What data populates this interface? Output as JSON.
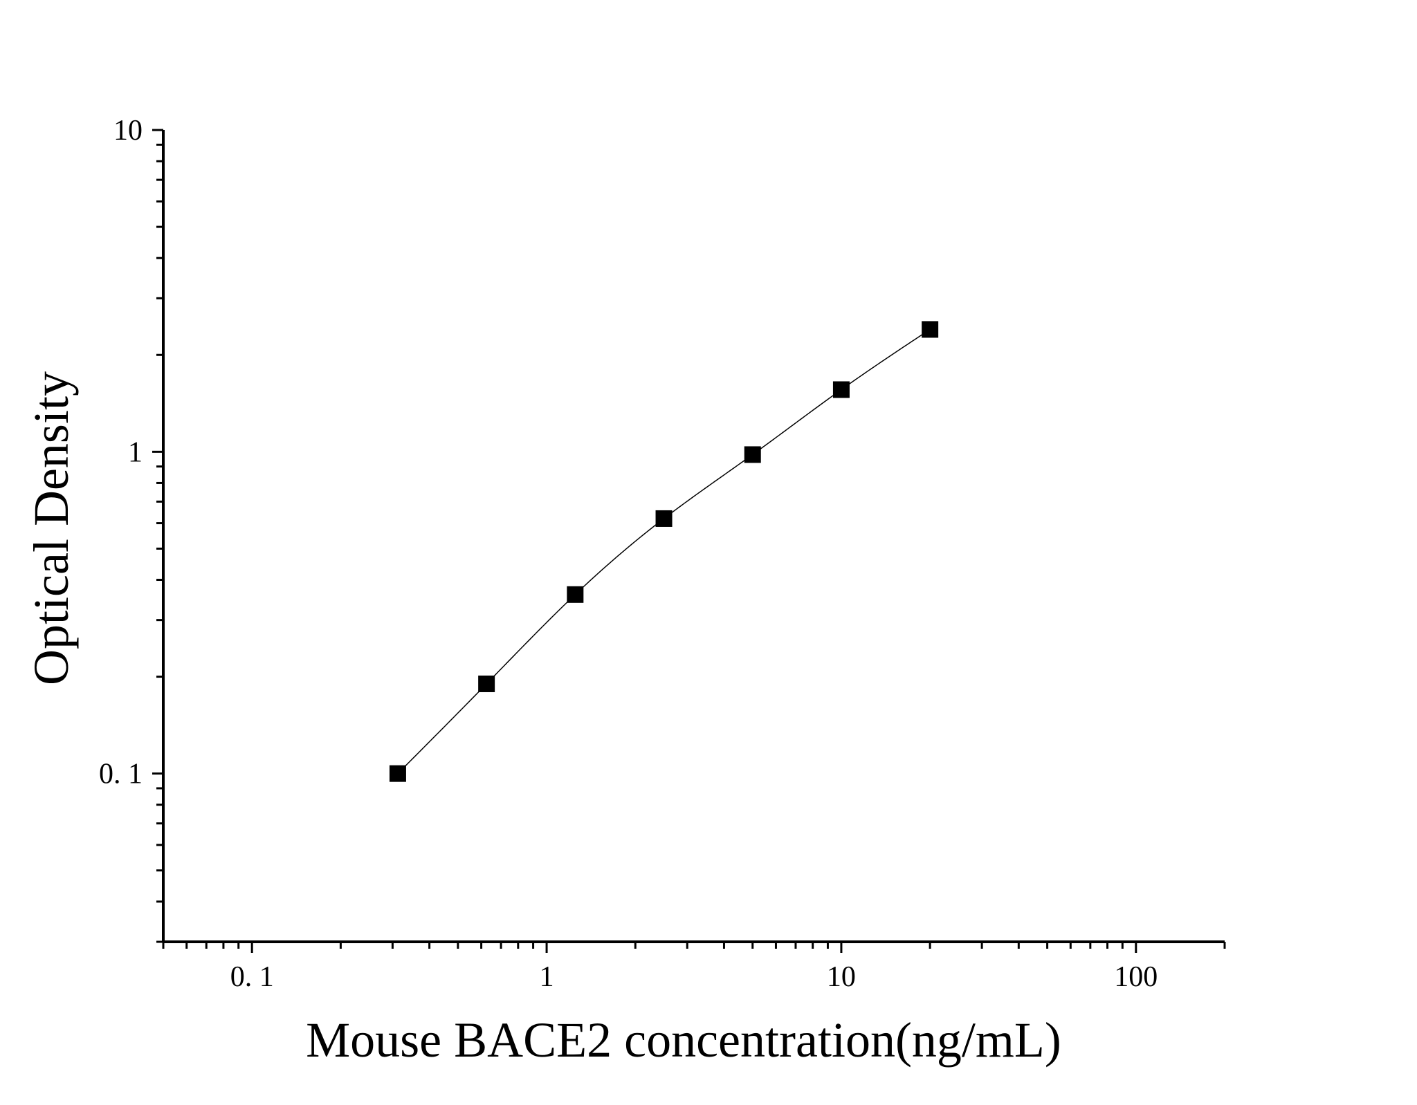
{
  "chart_data": {
    "type": "scatter",
    "title": "",
    "xlabel": "Mouse BACE2 concentration(ng/mL)",
    "ylabel": "Optical Density",
    "xscale": "log",
    "yscale": "log",
    "xlim": [
      0.05,
      200
    ],
    "ylim": [
      0.03,
      10
    ],
    "xticks": [
      {
        "value": 0.1,
        "label": "0. 1"
      },
      {
        "value": 1,
        "label": "1"
      },
      {
        "value": 10,
        "label": "10"
      },
      {
        "value": 100,
        "label": "100"
      }
    ],
    "yticks": [
      {
        "value": 0.1,
        "label": "0. 1"
      },
      {
        "value": 1,
        "label": "1"
      },
      {
        "value": 10,
        "label": "10"
      }
    ],
    "grid": false,
    "legend": "none",
    "marker": "square",
    "colors": {
      "marker": "#000000",
      "line": "#000000"
    },
    "series": [
      {
        "x": [
          0.3125,
          0.625,
          1.25,
          2.5,
          5,
          10,
          20
        ],
        "y": [
          0.1,
          0.19,
          0.36,
          0.62,
          0.98,
          1.56,
          2.4
        ]
      }
    ],
    "fit_line": true
  }
}
